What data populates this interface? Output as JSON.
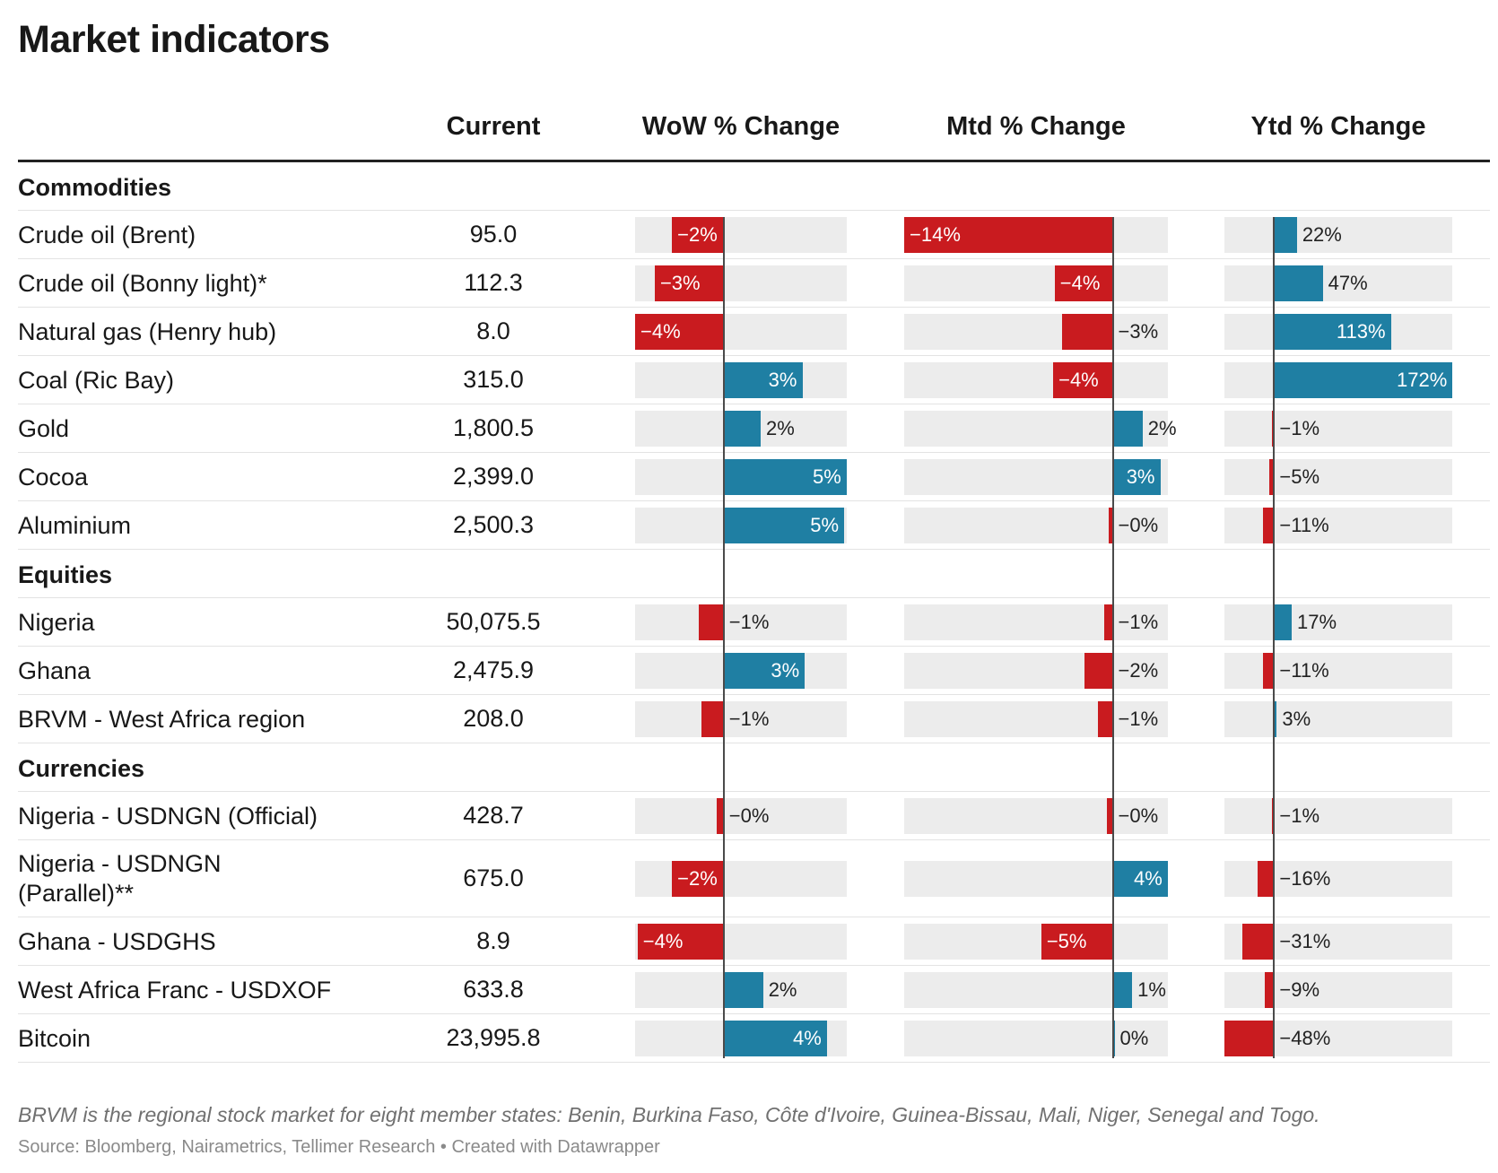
{
  "title": "Market indicators",
  "headers": {
    "current": "Current",
    "wow": "WoW % Change",
    "mtd": "Mtd % Change",
    "ytd": "Ytd % Change"
  },
  "colors": {
    "positive": "#1f7fa3",
    "negative": "#c91b1f",
    "track": "#ececec"
  },
  "chart_data": {
    "type": "table",
    "columns": [
      "Current",
      "WoW % Change",
      "Mtd % Change",
      "Ytd % Change"
    ],
    "groups": [
      {
        "name": "Commodities",
        "rows": [
          {
            "label": "Crude oil (Brent)",
            "current": "95.0",
            "wow": -2.1,
            "mtd": -14.0,
            "ytd": 22,
            "wow_label": "−2%",
            "mtd_label": "−14%",
            "ytd_label": "22%"
          },
          {
            "label": "Crude oil (Bonny light)*",
            "current": "112.3",
            "wow": -2.8,
            "mtd": -3.9,
            "ytd": 47,
            "wow_label": "−3%",
            "mtd_label": "−4%",
            "ytd_label": "47%"
          },
          {
            "label": "Natural gas (Henry hub)",
            "current": "8.0",
            "wow": -3.6,
            "mtd": -3.4,
            "ytd": 113,
            "wow_label": "−4%",
            "mtd_label": "−3%",
            "ytd_label": "113%"
          },
          {
            "label": "Coal (Ric Bay)",
            "current": "315.0",
            "wow": 3.2,
            "mtd": -4.0,
            "ytd": 172,
            "wow_label": "3%",
            "mtd_label": "−4%",
            "ytd_label": "172%"
          },
          {
            "label": "Gold",
            "current": "1,800.5",
            "wow": 1.5,
            "mtd": 2.0,
            "ytd": -0.8,
            "wow_label": "2%",
            "mtd_label": "2%",
            "ytd_label": "−1%"
          },
          {
            "label": "Cocoa",
            "current": "2,399.0",
            "wow": 5.0,
            "mtd": 3.2,
            "ytd": -4.5,
            "wow_label": "5%",
            "mtd_label": "3%",
            "ytd_label": "−5%"
          },
          {
            "label": "Aluminium",
            "current": "2,500.3",
            "wow": 4.9,
            "mtd": -0.3,
            "ytd": -11,
            "wow_label": "5%",
            "mtd_label": "−0%",
            "ytd_label": "−11%"
          }
        ]
      },
      {
        "name": "Equities",
        "rows": [
          {
            "label": "Nigeria",
            "current": "50,075.5",
            "wow": -1.0,
            "mtd": -0.6,
            "ytd": 17,
            "wow_label": "−1%",
            "mtd_label": "−1%",
            "ytd_label": "17%"
          },
          {
            "label": "Ghana",
            "current": "2,475.9",
            "wow": 3.3,
            "mtd": -1.9,
            "ytd": -11,
            "wow_label": "3%",
            "mtd_label": "−2%",
            "ytd_label": "−11%"
          },
          {
            "label": "BRVM - West Africa region",
            "current": "208.0",
            "wow": -0.9,
            "mtd": -1.0,
            "ytd": 2.6,
            "wow_label": "−1%",
            "mtd_label": "−1%",
            "ytd_label": "3%"
          }
        ]
      },
      {
        "name": "Currencies",
        "rows": [
          {
            "label": "Nigeria - USDNGN (Official)",
            "current": "428.7",
            "wow": -0.3,
            "mtd": -0.4,
            "ytd": -0.6,
            "wow_label": "−0%",
            "mtd_label": "−0%",
            "ytd_label": "−1%"
          },
          {
            "label": "Nigeria - USDNGN (Parallel)**",
            "current": "675.0",
            "wow": -2.1,
            "mtd": 3.7,
            "ytd": -16,
            "wow_label": "−2%",
            "mtd_label": "4%",
            "ytd_label": "−16%"
          },
          {
            "label": "Ghana - USDGHS",
            "current": "8.9",
            "wow": -3.5,
            "mtd": -4.8,
            "ytd": -31,
            "wow_label": "−4%",
            "mtd_label": "−5%",
            "ytd_label": "−31%"
          },
          {
            "label": "West Africa Franc - USDXOF",
            "current": "633.8",
            "wow": 1.6,
            "mtd": 1.3,
            "ytd": -9,
            "wow_label": "2%",
            "mtd_label": "1%",
            "ytd_label": "−9%"
          },
          {
            "label": "Bitcoin",
            "current": "23,995.8",
            "wow": 4.2,
            "mtd": 0.1,
            "ytd": -48,
            "wow_label": "4%",
            "mtd_label": "0%",
            "ytd_label": "−48%"
          }
        ]
      }
    ],
    "ranges": {
      "wow": [
        -3.6,
        5.0
      ],
      "mtd": [
        -14.0,
        3.7
      ],
      "ytd": [
        -48,
        172
      ]
    }
  },
  "notes": "BRVM is the regional stock market for eight member states: Benin, Burkina Faso, Côte d'Ivoire, Guinea-Bissau, Mali, Niger, Senegal and Togo.",
  "source": "Source: Bloomberg, Nairametrics, Tellimer Research • Created with Datawrapper"
}
